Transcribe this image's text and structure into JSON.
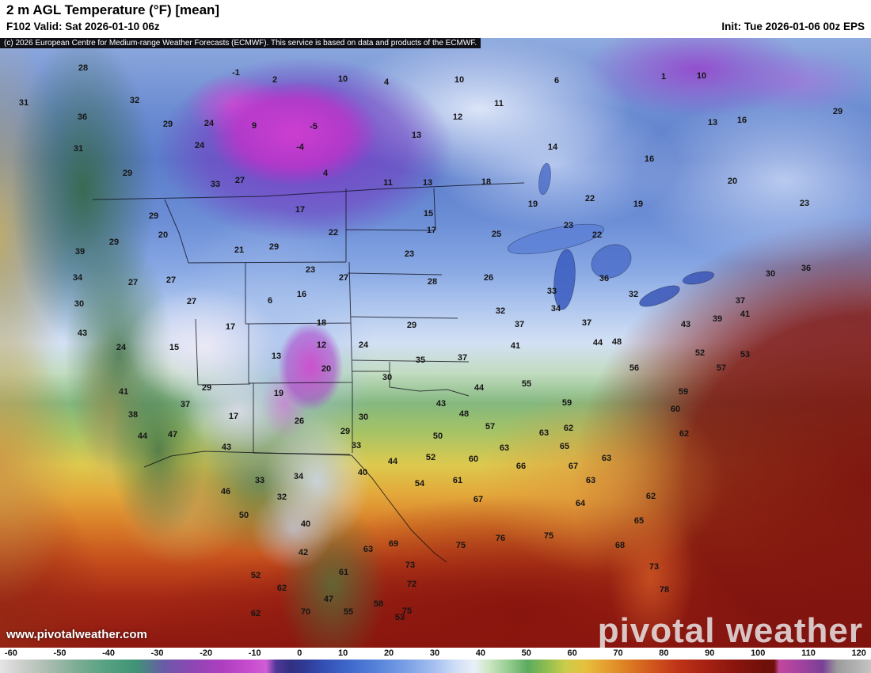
{
  "header": {
    "title": "2 m AGL Temperature (°F) [mean]",
    "valid": "F102 Valid: Sat 2026-01-10 06z",
    "init": "Init: Tue 2026-01-06 00z EPS",
    "copyright": "(c) 2026 European Centre for Medium-range Weather Forecasts (ECMWF). This service is based on data and products of the ECMWF."
  },
  "watermark": {
    "logo": "pivotal weather",
    "url": "www.pivotalweather.com"
  },
  "colorbar": {
    "min": -60,
    "max": 120,
    "ticks": [
      -60,
      -50,
      -40,
      -30,
      -20,
      -10,
      0,
      10,
      20,
      30,
      40,
      50,
      60,
      70,
      80,
      90,
      100,
      110,
      120
    ],
    "stops": [
      {
        "v": -60,
        "c": "#e4e4e4"
      },
      {
        "v": -55,
        "c": "#c9cdc9"
      },
      {
        "v": -50,
        "c": "#a9bdb0"
      },
      {
        "v": -44,
        "c": "#7cac94"
      },
      {
        "v": -38,
        "c": "#56a182"
      },
      {
        "v": -32,
        "c": "#3f9476"
      },
      {
        "v": -26,
        "c": "#6a5aa8"
      },
      {
        "v": -20,
        "c": "#8f46b4"
      },
      {
        "v": -14,
        "c": "#ad3fc0"
      },
      {
        "v": -8,
        "c": "#c84ecf"
      },
      {
        "v": -5,
        "c": "#cf5ed6"
      },
      {
        "v": -3,
        "c": "#4f3899"
      },
      {
        "v": 0,
        "c": "#32307f"
      },
      {
        "v": 3,
        "c": "#2f3a96"
      },
      {
        "v": 7,
        "c": "#3450b4"
      },
      {
        "v": 12,
        "c": "#3f68cc"
      },
      {
        "v": 18,
        "c": "#5783da"
      },
      {
        "v": 24,
        "c": "#7ba0e6"
      },
      {
        "v": 30,
        "c": "#a7c1f0"
      },
      {
        "v": 34,
        "c": "#cdddf6"
      },
      {
        "v": 38,
        "c": "#e9f0f8"
      },
      {
        "v": 41,
        "c": "#cde7c3"
      },
      {
        "v": 45,
        "c": "#97cd92"
      },
      {
        "v": 49,
        "c": "#5cab60"
      },
      {
        "v": 53,
        "c": "#8fbe50"
      },
      {
        "v": 57,
        "c": "#cdcc4a"
      },
      {
        "v": 61,
        "c": "#e5c03c"
      },
      {
        "v": 65,
        "c": "#e5a02f"
      },
      {
        "v": 70,
        "c": "#dc7a22"
      },
      {
        "v": 75,
        "c": "#d0551d"
      },
      {
        "v": 80,
        "c": "#bf3417"
      },
      {
        "v": 86,
        "c": "#a62112"
      },
      {
        "v": 92,
        "c": "#8a150e"
      },
      {
        "v": 98,
        "c": "#6f0f09"
      },
      {
        "v": 100,
        "c": "#701009"
      },
      {
        "v": 101,
        "c": "#c2479c"
      },
      {
        "v": 105,
        "c": "#a5439f"
      },
      {
        "v": 110,
        "c": "#7a4096"
      },
      {
        "v": 113,
        "c": "#9b9b9b"
      },
      {
        "v": 120,
        "c": "#c4c4c4"
      }
    ]
  },
  "map": {
    "labels": [
      [
        28,
        105,
        86
      ],
      [
        -1,
        298,
        92
      ],
      [
        2,
        347,
        101
      ],
      [
        10,
        433,
        100
      ],
      [
        4,
        488,
        104
      ],
      [
        10,
        580,
        101
      ],
      [
        6,
        703,
        102
      ],
      [
        1,
        838,
        97
      ],
      [
        10,
        886,
        96
      ],
      [
        31,
        30,
        130
      ],
      [
        32,
        170,
        127
      ],
      [
        11,
        630,
        131
      ],
      [
        29,
        1058,
        141
      ],
      [
        36,
        104,
        148
      ],
      [
        29,
        212,
        157
      ],
      [
        24,
        264,
        156
      ],
      [
        9,
        321,
        159
      ],
      [
        -5,
        396,
        160
      ],
      [
        12,
        578,
        148
      ],
      [
        13,
        900,
        155
      ],
      [
        16,
        937,
        152
      ],
      [
        31,
        99,
        188
      ],
      [
        24,
        252,
        184
      ],
      [
        -4,
        379,
        186
      ],
      [
        13,
        526,
        171
      ],
      [
        14,
        698,
        186
      ],
      [
        29,
        161,
        219
      ],
      [
        4,
        411,
        219
      ],
      [
        16,
        820,
        201
      ],
      [
        11,
        490,
        231
      ],
      [
        13,
        540,
        231
      ],
      [
        18,
        614,
        230
      ],
      [
        20,
        925,
        229
      ],
      [
        33,
        272,
        233
      ],
      [
        27,
        303,
        228
      ],
      [
        19,
        673,
        258
      ],
      [
        19,
        806,
        258
      ],
      [
        23,
        1016,
        257
      ],
      [
        22,
        745,
        251
      ],
      [
        17,
        379,
        265
      ],
      [
        15,
        541,
        270
      ],
      [
        29,
        194,
        273
      ],
      [
        20,
        206,
        297
      ],
      [
        22,
        421,
        294
      ],
      [
        17,
        545,
        291
      ],
      [
        25,
        627,
        296
      ],
      [
        23,
        718,
        285
      ],
      [
        22,
        754,
        297
      ],
      [
        29,
        144,
        306
      ],
      [
        39,
        101,
        318
      ],
      [
        21,
        302,
        316
      ],
      [
        29,
        346,
        312
      ],
      [
        23,
        517,
        321
      ],
      [
        34,
        98,
        351
      ],
      [
        27,
        168,
        357
      ],
      [
        27,
        216,
        354
      ],
      [
        23,
        392,
        341
      ],
      [
        27,
        434,
        351
      ],
      [
        26,
        617,
        351
      ],
      [
        36,
        1018,
        339
      ],
      [
        28,
        546,
        356
      ],
      [
        30,
        973,
        346
      ],
      [
        36,
        763,
        352
      ],
      [
        30,
        100,
        384
      ],
      [
        27,
        242,
        381
      ],
      [
        6,
        341,
        380
      ],
      [
        16,
        381,
        372
      ],
      [
        33,
        697,
        368
      ],
      [
        32,
        800,
        372
      ],
      [
        43,
        104,
        421
      ],
      [
        17,
        291,
        413
      ],
      [
        18,
        406,
        408
      ],
      [
        32,
        632,
        393
      ],
      [
        34,
        702,
        390
      ],
      [
        37,
        935,
        380
      ],
      [
        39,
        906,
        403
      ],
      [
        41,
        941,
        397
      ],
      [
        24,
        153,
        439
      ],
      [
        15,
        220,
        439
      ],
      [
        12,
        406,
        436
      ],
      [
        24,
        459,
        436
      ],
      [
        29,
        520,
        411
      ],
      [
        37,
        656,
        410
      ],
      [
        37,
        741,
        408
      ],
      [
        43,
        866,
        410
      ],
      [
        44,
        755,
        433
      ],
      [
        48,
        779,
        432
      ],
      [
        13,
        349,
        450
      ],
      [
        35,
        531,
        455
      ],
      [
        37,
        584,
        452
      ],
      [
        41,
        651,
        437
      ],
      [
        52,
        884,
        446
      ],
      [
        53,
        941,
        448
      ],
      [
        20,
        412,
        466
      ],
      [
        30,
        489,
        477
      ],
      [
        55,
        665,
        485
      ],
      [
        56,
        801,
        465
      ],
      [
        57,
        911,
        465
      ],
      [
        41,
        156,
        495
      ],
      [
        29,
        261,
        490
      ],
      [
        19,
        352,
        497
      ],
      [
        44,
        605,
        490
      ],
      [
        59,
        863,
        495
      ],
      [
        37,
        234,
        511
      ],
      [
        38,
        168,
        524
      ],
      [
        17,
        295,
        526
      ],
      [
        26,
        378,
        532
      ],
      [
        30,
        459,
        527
      ],
      [
        43,
        557,
        510
      ],
      [
        48,
        586,
        523
      ],
      [
        59,
        716,
        509
      ],
      [
        60,
        853,
        517
      ],
      [
        44,
        180,
        551
      ],
      [
        47,
        218,
        549
      ],
      [
        29,
        436,
        545
      ],
      [
        33,
        450,
        563
      ],
      [
        50,
        553,
        551
      ],
      [
        57,
        619,
        539
      ],
      [
        62,
        718,
        541
      ],
      [
        63,
        687,
        547
      ],
      [
        62,
        864,
        548
      ],
      [
        43,
        286,
        565
      ],
      [
        44,
        496,
        583
      ],
      [
        52,
        544,
        578
      ],
      [
        60,
        598,
        580
      ],
      [
        63,
        637,
        566
      ],
      [
        65,
        713,
        564
      ],
      [
        63,
        766,
        579
      ],
      [
        34,
        377,
        602
      ],
      [
        33,
        328,
        607
      ],
      [
        40,
        458,
        597
      ],
      [
        54,
        530,
        611
      ],
      [
        61,
        578,
        607
      ],
      [
        66,
        658,
        589
      ],
      [
        67,
        724,
        589
      ],
      [
        46,
        285,
        621
      ],
      [
        32,
        356,
        628
      ],
      [
        67,
        604,
        631
      ],
      [
        64,
        733,
        636
      ],
      [
        63,
        746,
        607
      ],
      [
        62,
        822,
        627
      ],
      [
        50,
        308,
        651
      ],
      [
        40,
        386,
        662
      ],
      [
        65,
        807,
        658
      ],
      [
        42,
        383,
        698
      ],
      [
        63,
        465,
        694
      ],
      [
        69,
        497,
        687
      ],
      [
        75,
        582,
        689
      ],
      [
        76,
        632,
        680
      ],
      [
        75,
        693,
        677
      ],
      [
        68,
        783,
        689
      ],
      [
        52,
        323,
        727
      ],
      [
        61,
        434,
        723
      ],
      [
        73,
        518,
        714
      ],
      [
        73,
        826,
        716
      ],
      [
        62,
        356,
        743
      ],
      [
        72,
        520,
        738
      ],
      [
        78,
        839,
        745
      ],
      [
        47,
        415,
        757
      ],
      [
        55,
        440,
        773
      ],
      [
        62,
        323,
        775
      ],
      [
        70,
        386,
        773
      ],
      [
        58,
        478,
        763
      ],
      [
        53,
        505,
        780
      ],
      [
        75,
        514,
        772
      ]
    ]
  }
}
